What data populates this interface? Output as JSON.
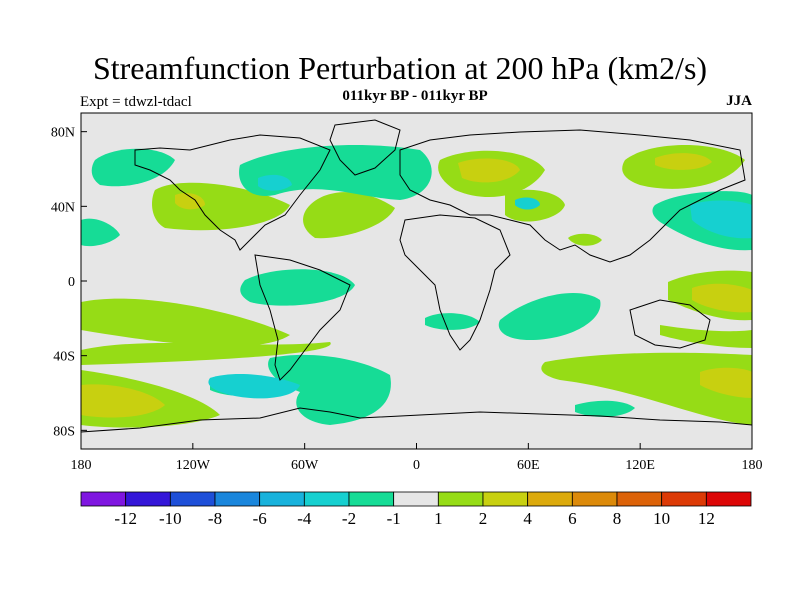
{
  "title": "Streamfunction Perturbation at 200 hPa (km2/s)",
  "subtitle": "011kyr BP - 011kyr BP",
  "left_label": "Expt = tdwzl-tdacl",
  "right_label": "JJA",
  "map": {
    "background_color": "#e6e6e6",
    "lon_range": [
      -180,
      180
    ],
    "lat_range": [
      -90,
      90
    ],
    "x_ticks": [
      {
        "lon": -180,
        "label": "180"
      },
      {
        "lon": -120,
        "label": "120W"
      },
      {
        "lon": -60,
        "label": "60W"
      },
      {
        "lon": 0,
        "label": "0"
      },
      {
        "lon": 60,
        "label": "60E"
      },
      {
        "lon": 120,
        "label": "120E"
      },
      {
        "lon": 180,
        "label": "180"
      }
    ],
    "y_ticks": [
      {
        "lat": 80,
        "label": "80N"
      },
      {
        "lat": 40,
        "label": "40N"
      },
      {
        "lat": 0,
        "label": "0"
      },
      {
        "lat": -40,
        "label": "40S"
      },
      {
        "lat": -80,
        "label": "80S"
      }
    ]
  },
  "colorbar": {
    "colors": [
      "#7f16e0",
      "#3416d8",
      "#1e4fd8",
      "#1a86dc",
      "#18b2dc",
      "#16d0d0",
      "#16dc96",
      "#e6e6e6",
      "#96dc16",
      "#c8d010",
      "#dcaa0c",
      "#dc8a0a",
      "#dc6208",
      "#dc3a06",
      "#dc0606"
    ],
    "labels": [
      "-12",
      "-10",
      "-8",
      "-6",
      "-4",
      "-2",
      "-1",
      "1",
      "2",
      "4",
      "6",
      "8",
      "10",
      "12"
    ]
  }
}
